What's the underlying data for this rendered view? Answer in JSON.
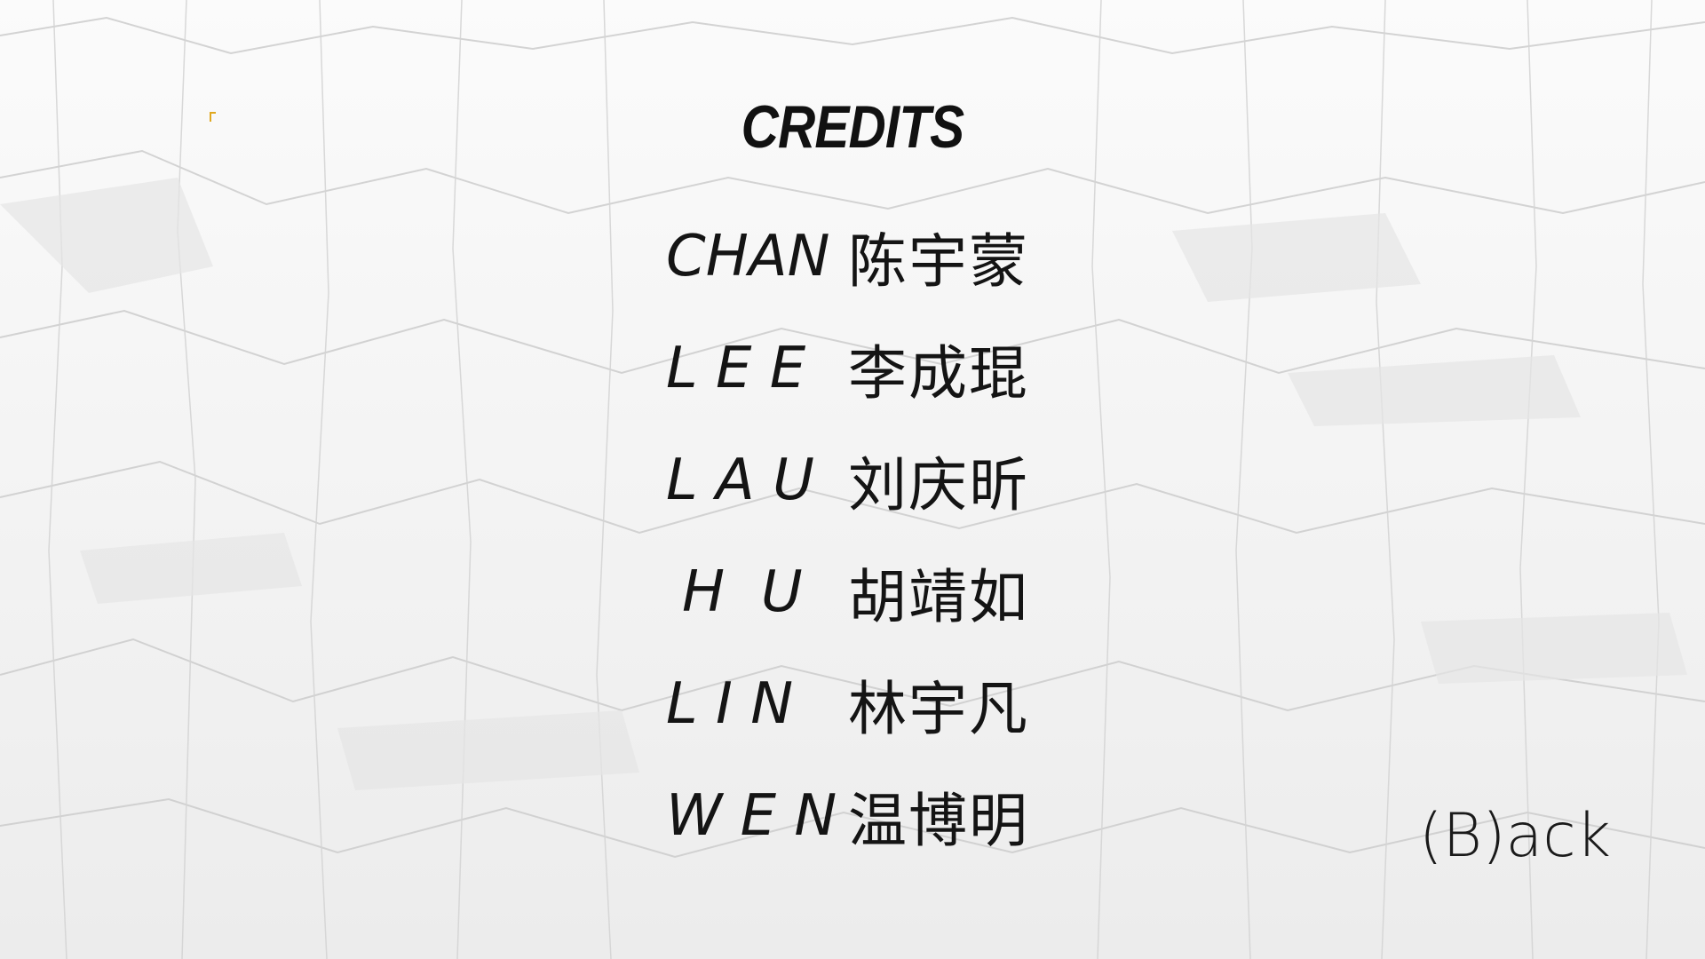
{
  "screen": {
    "title": "CREDITS",
    "back_label": "(B)ack"
  },
  "credits": [
    {
      "latin": "CHAN",
      "chinese": "陈宇蒙"
    },
    {
      "latin": "L E E",
      "chinese": "李成琨"
    },
    {
      "latin": "L A U",
      "chinese": "刘庆昕"
    },
    {
      "latin": "H  U",
      "chinese": "胡靖如"
    },
    {
      "latin": "L I N",
      "chinese": "林宇凡"
    },
    {
      "latin": "W E N",
      "chinese": "温博明"
    }
  ],
  "colors": {
    "background": "#f4f4f4",
    "text": "#111111",
    "marker": "#e0a81f"
  },
  "icons": {
    "corner_marker": "corner-bracket-icon"
  }
}
